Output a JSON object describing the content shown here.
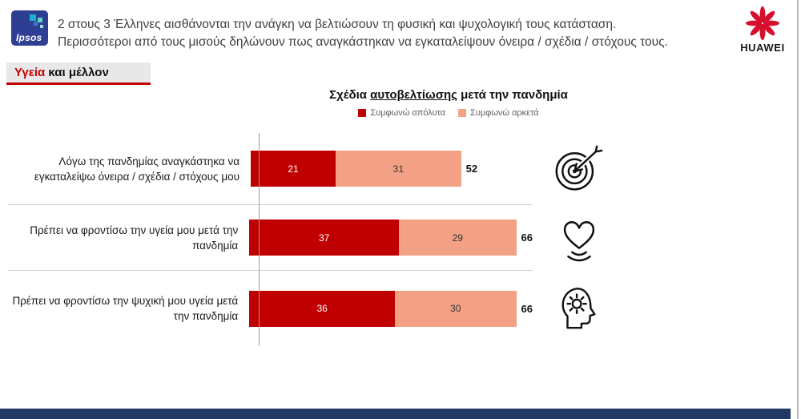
{
  "slide": {
    "footer_bar_color": "#1f3864",
    "border_color": "#b9b9b9",
    "background": "#ffffff"
  },
  "logos": {
    "ipsos_text": "Ipsos",
    "ipsos_bg": "#2e3e92",
    "huawei_text": "HUAWEI",
    "huawei_red": "#d50f2c"
  },
  "headline": {
    "line1": "2 στους 3 Έλληνες αισθάνονται την ανάγκη να βελτιώσουν τη φυσική και ψυχολογική τους κατάσταση.",
    "line2": "Περισσότεροι από τους μισούς δηλώνουν πως αναγκάστηκαν να εγκαταλείψουν όνειρα / σχέδια / στόχους τους.",
    "color": "#404040"
  },
  "section": {
    "word_red": "Υγεία",
    "word_rest": " και μέλλον",
    "accent": "#c00000",
    "box_bg": "#e9e8e8"
  },
  "chart_data": {
    "type": "bar",
    "orientation": "horizontal",
    "title_pre": "Σχέδια ",
    "title_underlined": "αυτοβελτίωσης",
    "title_post": " μετά την πανδημία",
    "legend": [
      {
        "label": "Συμφωνώ απόλυτα",
        "color": "#c00000"
      },
      {
        "label": "Συμφωνώ αρκετά",
        "color": "#f2a185"
      }
    ],
    "categories": [
      "Λόγω της πανδημίας αναγκάστηκα να εγκαταλείψω όνειρα / σχέδια / στόχους μου",
      "Πρέπει να φροντίσω την υγεία μου μετά την πανδημία",
      "Πρέπει να φροντίσω την ψυχική μου υγεία μετά την πανδημία"
    ],
    "series": [
      {
        "name": "Συμφωνώ απόλυτα",
        "values": [
          21,
          37,
          36
        ]
      },
      {
        "name": "Συμφωνώ αρκετά",
        "values": [
          31,
          29,
          30
        ]
      }
    ],
    "totals": [
      52,
      66,
      66
    ],
    "xlim": [
      0,
      100
    ],
    "grid": false,
    "legend_position": "top",
    "row_icons": [
      "target-dart-icon",
      "strong-heart-icon",
      "mindfulness-head-icon"
    ]
  }
}
